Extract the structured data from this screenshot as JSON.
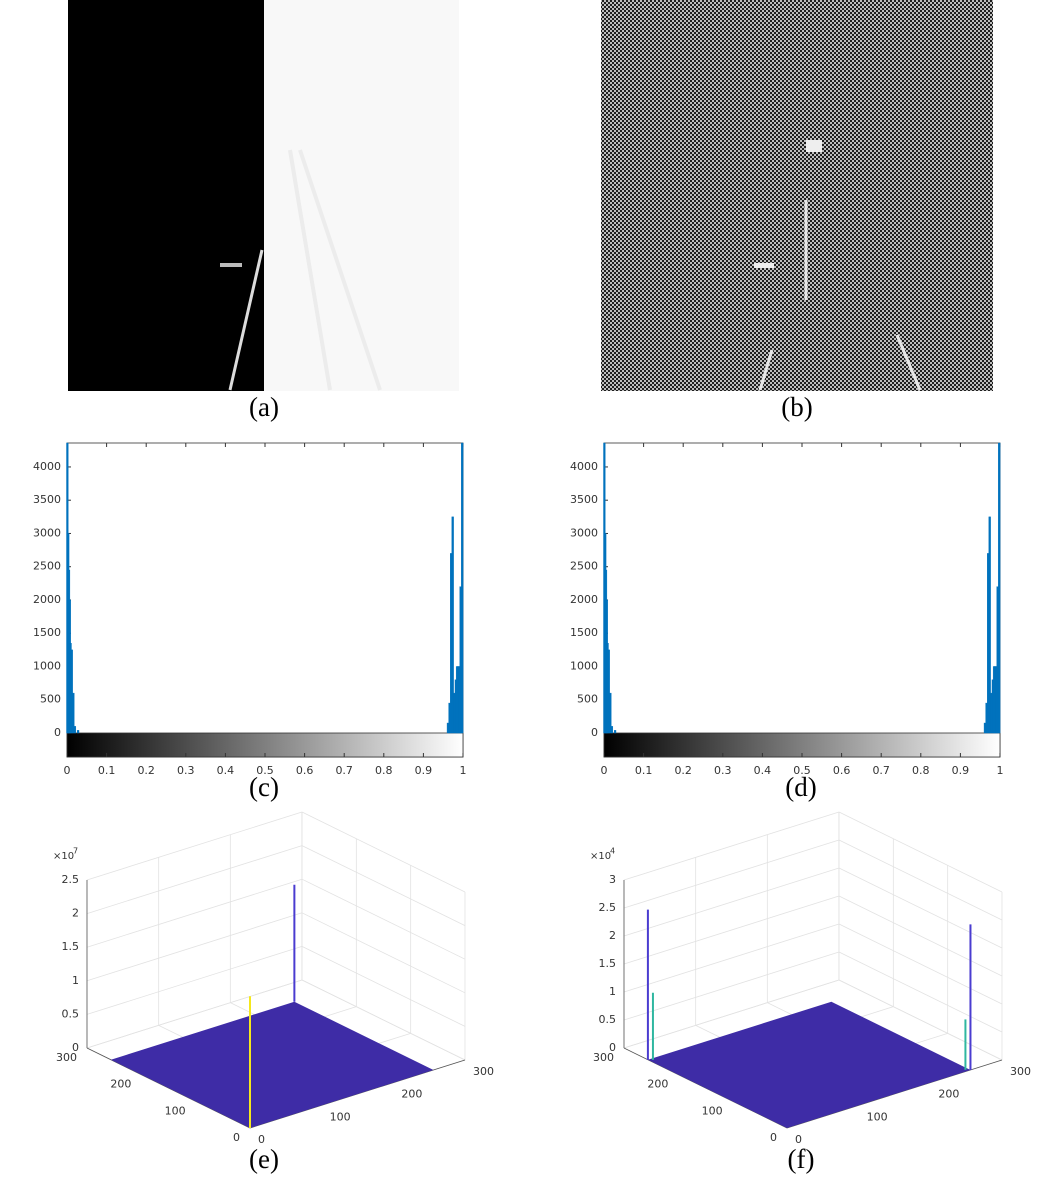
{
  "panels": [
    {
      "caption": "(a)"
    },
    {
      "caption": "(b)"
    }
  ],
  "chart_data": [
    {
      "type": "bar",
      "caption": "(c)",
      "color": "#0072bd",
      "x": [
        0.001,
        0.003,
        0.005,
        0.007,
        0.009,
        0.012,
        0.016,
        0.02,
        0.028,
        0.962,
        0.966,
        0.97,
        0.974,
        0.978,
        0.982,
        0.985,
        0.988,
        0.991,
        0.994,
        0.998
      ],
      "values": [
        4360,
        3000,
        2450,
        2000,
        1350,
        1250,
        600,
        100,
        40,
        150,
        450,
        2700,
        3250,
        600,
        800,
        1000,
        1000,
        1000,
        2200,
        4360
      ],
      "xlim": [
        0,
        1
      ],
      "xticks": [
        0,
        0.1,
        0.2,
        0.3,
        0.4,
        0.5,
        0.6,
        0.7,
        0.8,
        0.9,
        1
      ],
      "ylim": [
        0,
        4360
      ],
      "yticks": [
        0,
        500,
        1000,
        1500,
        2000,
        2500,
        3000,
        3500,
        4000
      ],
      "colorbar": true
    },
    {
      "type": "bar",
      "caption": "(d)",
      "color": "#0072bd",
      "x": [
        0.001,
        0.003,
        0.005,
        0.007,
        0.009,
        0.012,
        0.016,
        0.02,
        0.028,
        0.962,
        0.966,
        0.97,
        0.974,
        0.978,
        0.982,
        0.985,
        0.988,
        0.991,
        0.994,
        0.998
      ],
      "values": [
        4360,
        3000,
        2450,
        2000,
        1350,
        1250,
        600,
        100,
        40,
        150,
        450,
        2700,
        3250,
        600,
        800,
        1000,
        1000,
        1000,
        2200,
        4360
      ],
      "xlim": [
        0,
        1
      ],
      "xticks": [
        0,
        0.1,
        0.2,
        0.3,
        0.4,
        0.5,
        0.6,
        0.7,
        0.8,
        0.9,
        1
      ],
      "ylim": [
        0,
        4360
      ],
      "yticks": [
        0,
        500,
        1000,
        1500,
        2000,
        2500,
        3000,
        3500,
        4000
      ],
      "colorbar": true
    },
    {
      "type": "surface",
      "caption": "(e)",
      "multiplier": "×10",
      "exponent": "7",
      "xlim": [
        0,
        300
      ],
      "ylim": [
        0,
        300
      ],
      "zlim": [
        0,
        2.5
      ],
      "xticks": [
        0,
        100,
        200,
        300
      ],
      "yticks": [
        0,
        100,
        200,
        300
      ],
      "zticks": [
        0,
        0.5,
        1,
        1.5,
        2,
        2.5
      ],
      "floor": {
        "x": 256,
        "y": 256,
        "z": 0,
        "color": "#3e2ca6"
      },
      "series": [
        {
          "color": "#4a3cd0",
          "x": [
            256
          ],
          "y": [
            256
          ],
          "values": [
            1.74
          ]
        },
        {
          "color": "#f5e81c",
          "x": [
            0
          ],
          "y": [
            0
          ],
          "values": [
            1.96
          ]
        }
      ]
    },
    {
      "type": "surface",
      "caption": "(f)",
      "multiplier": "×10",
      "exponent": "4",
      "xlim": [
        0,
        300
      ],
      "ylim": [
        0,
        300
      ],
      "zlim": [
        0,
        3
      ],
      "xticks": [
        0,
        100,
        200,
        300
      ],
      "yticks": [
        0,
        100,
        200,
        300
      ],
      "zticks": [
        0,
        0.5,
        1,
        1.5,
        2,
        2.5,
        3
      ],
      "floor": {
        "x": 256,
        "y": 256,
        "z": 0,
        "color": "#3e2ca6"
      },
      "series": [
        {
          "color": "#4a3cd0",
          "x": [
            0,
            256
          ],
          "y": [
            256,
            0
          ],
          "values": [
            2.68,
            2.6
          ]
        },
        {
          "color": "#2fb7a0",
          "x": [
            4,
            252
          ],
          "y": [
            252,
            4
          ],
          "values": [
            1.2,
            0.9
          ]
        }
      ]
    }
  ]
}
